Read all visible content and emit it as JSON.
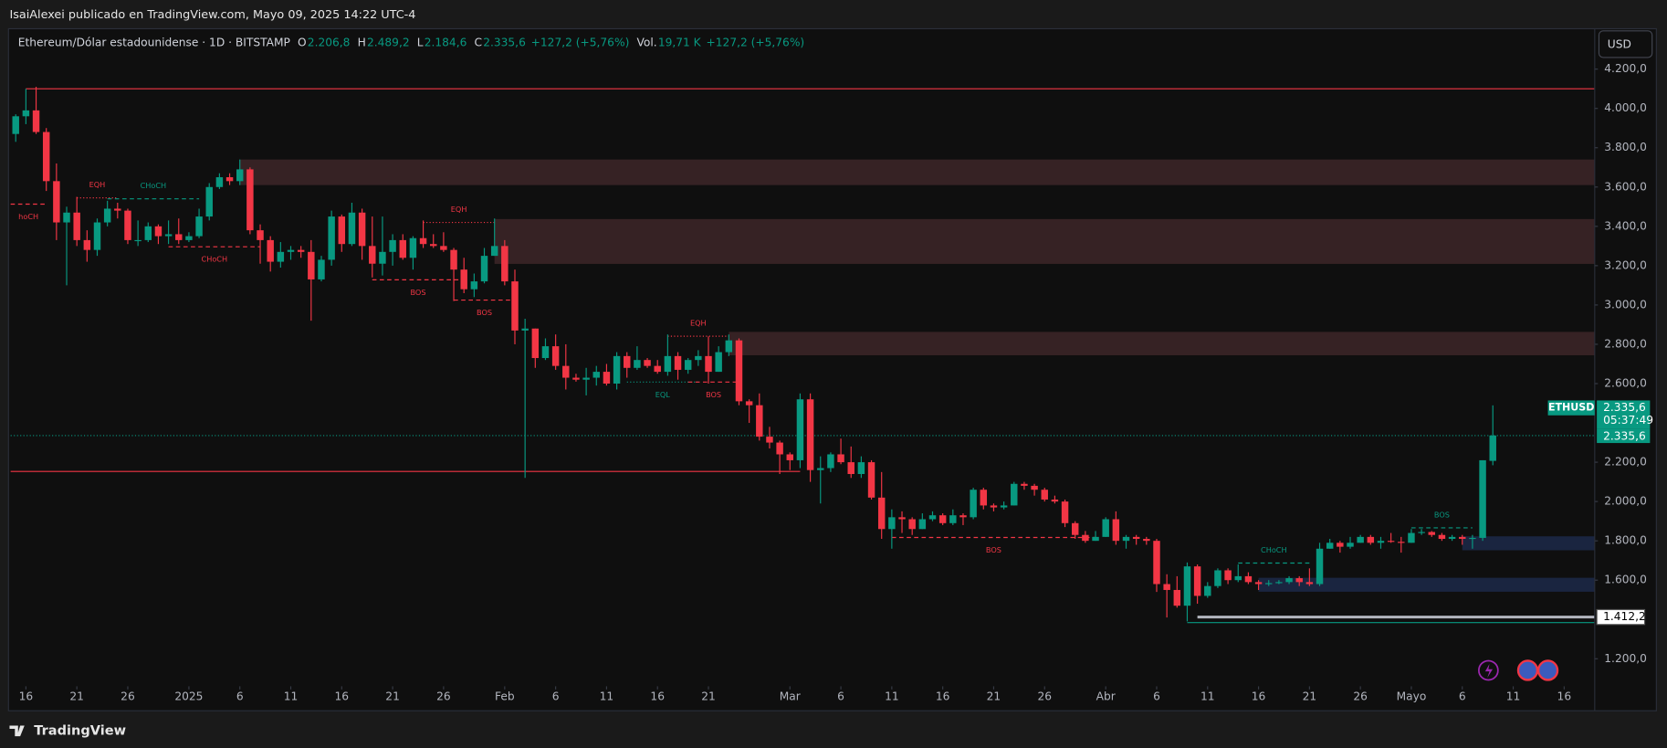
{
  "header": {
    "publisher": "IsaiAlexei publicado en TradingView.com, Mayo 09, 2025 14:22 UTC-4",
    "brand": "TradingView"
  },
  "legend": {
    "symbol": "Ethereum/Dólar estadounidense · 1D · BITSTAMP",
    "items": [
      {
        "key": "O",
        "text": "2.206,8"
      },
      {
        "key": "H",
        "text": "2.489,2"
      },
      {
        "key": "L",
        "text": "2.184,6"
      },
      {
        "key": "C",
        "text": "2.335,6"
      },
      {
        "text": "+127,2 (+5,76%)"
      },
      {
        "key": "Vol.",
        "text": "19,71 K"
      },
      {
        "text": "+127,2 (+5,76%)"
      }
    ]
  },
  "chart_data": {
    "type": "candlestick",
    "currency": "USD",
    "up_color": "#089981",
    "down_color": "#f23645",
    "xlim": [
      -0.5,
      155
    ],
    "ylim": [
      1060,
      4400
    ],
    "grid": false,
    "xticks": [
      {
        "value": 1,
        "label": "16"
      },
      {
        "value": 6,
        "label": "21"
      },
      {
        "value": 11,
        "label": "26"
      },
      {
        "value": 17,
        "label": "2025"
      },
      {
        "value": 22,
        "label": "6"
      },
      {
        "value": 27,
        "label": "11"
      },
      {
        "value": 32,
        "label": "16"
      },
      {
        "value": 37,
        "label": "21"
      },
      {
        "value": 42,
        "label": "26"
      },
      {
        "value": 48,
        "label": "Feb"
      },
      {
        "value": 53,
        "label": "6"
      },
      {
        "value": 58,
        "label": "11"
      },
      {
        "value": 63,
        "label": "16"
      },
      {
        "value": 68,
        "label": "21"
      },
      {
        "value": 76,
        "label": "Mar"
      },
      {
        "value": 81,
        "label": "6"
      },
      {
        "value": 86,
        "label": "11"
      },
      {
        "value": 91,
        "label": "16"
      },
      {
        "value": 96,
        "label": "21"
      },
      {
        "value": 101,
        "label": "26"
      },
      {
        "value": 107,
        "label": "Abr"
      },
      {
        "value": 112,
        "label": "6"
      },
      {
        "value": 117,
        "label": "11"
      },
      {
        "value": 122,
        "label": "16"
      },
      {
        "value": 127,
        "label": "21"
      },
      {
        "value": 132,
        "label": "26"
      },
      {
        "value": 137,
        "label": "Mayo"
      },
      {
        "value": 142,
        "label": "6"
      },
      {
        "value": 147,
        "label": "11"
      },
      {
        "value": 152,
        "label": "16"
      }
    ],
    "yticks": [
      {
        "value": 1200,
        "label": "1.200,0"
      },
      {
        "value": 1600,
        "label": "1.600,0"
      },
      {
        "value": 1800,
        "label": "1.800,0"
      },
      {
        "value": 2000,
        "label": "2.000,0"
      },
      {
        "value": 2200,
        "label": "2.200,0"
      },
      {
        "value": 2600,
        "label": "2.600,0"
      },
      {
        "value": 2800,
        "label": "2.800,0"
      },
      {
        "value": 3000,
        "label": "3.000,0"
      },
      {
        "value": 3200,
        "label": "3.200,0"
      },
      {
        "value": 3400,
        "label": "3.400,0"
      },
      {
        "value": 3600,
        "label": "3.600,0"
      },
      {
        "value": 3800,
        "label": "3.800,0"
      },
      {
        "value": 4000,
        "label": "4.000,0"
      },
      {
        "value": 4200,
        "label": "4.200,0"
      }
    ],
    "ohlc": [
      [
        3870,
        3970,
        3830,
        3960
      ],
      [
        3960,
        4100,
        3920,
        3990
      ],
      [
        3990,
        4110,
        3870,
        3880
      ],
      [
        3880,
        3900,
        3580,
        3630
      ],
      [
        3630,
        3720,
        3330,
        3420
      ],
      [
        3420,
        3500,
        3100,
        3470
      ],
      [
        3470,
        3550,
        3300,
        3330
      ],
      [
        3330,
        3380,
        3220,
        3280
      ],
      [
        3280,
        3440,
        3250,
        3420
      ],
      [
        3420,
        3530,
        3400,
        3490
      ],
      [
        3490,
        3520,
        3440,
        3480
      ],
      [
        3480,
        3490,
        3310,
        3330
      ],
      [
        3330,
        3430,
        3300,
        3330
      ],
      [
        3330,
        3420,
        3320,
        3400
      ],
      [
        3400,
        3410,
        3310,
        3350
      ],
      [
        3350,
        3430,
        3310,
        3360
      ],
      [
        3360,
        3440,
        3310,
        3330
      ],
      [
        3330,
        3370,
        3320,
        3350
      ],
      [
        3350,
        3490,
        3340,
        3450
      ],
      [
        3450,
        3620,
        3430,
        3600
      ],
      [
        3600,
        3670,
        3590,
        3650
      ],
      [
        3650,
        3670,
        3610,
        3630
      ],
      [
        3630,
        3740,
        3610,
        3690
      ],
      [
        3690,
        3700,
        3360,
        3380
      ],
      [
        3380,
        3410,
        3210,
        3330
      ],
      [
        3330,
        3350,
        3170,
        3220
      ],
      [
        3220,
        3320,
        3190,
        3270
      ],
      [
        3270,
        3300,
        3230,
        3280
      ],
      [
        3280,
        3300,
        3240,
        3270
      ],
      [
        3270,
        3330,
        2920,
        3130
      ],
      [
        3130,
        3250,
        3120,
        3230
      ],
      [
        3230,
        3480,
        3200,
        3450
      ],
      [
        3450,
        3460,
        3270,
        3310
      ],
      [
        3310,
        3520,
        3300,
        3470
      ],
      [
        3470,
        3490,
        3230,
        3300
      ],
      [
        3300,
        3450,
        3140,
        3210
      ],
      [
        3210,
        3450,
        3150,
        3270
      ],
      [
        3270,
        3360,
        3200,
        3330
      ],
      [
        3330,
        3360,
        3230,
        3240
      ],
      [
        3240,
        3350,
        3180,
        3340
      ],
      [
        3340,
        3430,
        3290,
        3310
      ],
      [
        3310,
        3360,
        3290,
        3300
      ],
      [
        3300,
        3370,
        3270,
        3280
      ],
      [
        3280,
        3290,
        3020,
        3180
      ],
      [
        3180,
        3240,
        3060,
        3080
      ],
      [
        3080,
        3160,
        3040,
        3120
      ],
      [
        3120,
        3290,
        3110,
        3250
      ],
      [
        3250,
        3440,
        3250,
        3300
      ],
      [
        3300,
        3330,
        3100,
        3120
      ],
      [
        3120,
        3180,
        2800,
        2870
      ],
      [
        2870,
        2930,
        2120,
        2880
      ],
      [
        2880,
        2880,
        2680,
        2730
      ],
      [
        2730,
        2830,
        2720,
        2790
      ],
      [
        2790,
        2850,
        2670,
        2690
      ],
      [
        2690,
        2800,
        2570,
        2630
      ],
      [
        2630,
        2650,
        2610,
        2620
      ],
      [
        2620,
        2680,
        2540,
        2630
      ],
      [
        2630,
        2690,
        2590,
        2660
      ],
      [
        2660,
        2700,
        2590,
        2600
      ],
      [
        2600,
        2760,
        2570,
        2740
      ],
      [
        2740,
        2760,
        2630,
        2680
      ],
      [
        2680,
        2790,
        2670,
        2720
      ],
      [
        2720,
        2730,
        2680,
        2690
      ],
      [
        2690,
        2720,
        2650,
        2660
      ],
      [
        2660,
        2850,
        2640,
        2740
      ],
      [
        2740,
        2760,
        2620,
        2670
      ],
      [
        2670,
        2730,
        2650,
        2720
      ],
      [
        2720,
        2770,
        2690,
        2740
      ],
      [
        2740,
        2840,
        2600,
        2660
      ],
      [
        2660,
        2790,
        2660,
        2760
      ],
      [
        2760,
        2850,
        2740,
        2820
      ],
      [
        2820,
        2830,
        2490,
        2510
      ],
      [
        2510,
        2520,
        2400,
        2490
      ],
      [
        2490,
        2550,
        2310,
        2330
      ],
      [
        2330,
        2380,
        2270,
        2300
      ],
      [
        2300,
        2310,
        2140,
        2240
      ],
      [
        2240,
        2250,
        2160,
        2210
      ],
      [
        2210,
        2550,
        2170,
        2520
      ],
      [
        2520,
        2550,
        2100,
        2160
      ],
      [
        2160,
        2230,
        1990,
        2170
      ],
      [
        2170,
        2250,
        2150,
        2240
      ],
      [
        2240,
        2320,
        2190,
        2200
      ],
      [
        2200,
        2280,
        2120,
        2140
      ],
      [
        2140,
        2230,
        2120,
        2200
      ],
      [
        2200,
        2210,
        2010,
        2020
      ],
      [
        2020,
        2150,
        1810,
        1860
      ],
      [
        1860,
        1960,
        1760,
        1920
      ],
      [
        1920,
        1950,
        1840,
        1910
      ],
      [
        1910,
        1920,
        1830,
        1860
      ],
      [
        1860,
        1940,
        1860,
        1910
      ],
      [
        1910,
        1950,
        1900,
        1930
      ],
      [
        1930,
        1940,
        1880,
        1890
      ],
      [
        1890,
        1960,
        1880,
        1930
      ],
      [
        1930,
        1940,
        1880,
        1920
      ],
      [
        1920,
        2070,
        1910,
        2060
      ],
      [
        2060,
        2070,
        1960,
        1980
      ],
      [
        1980,
        1990,
        1950,
        1970
      ],
      [
        1970,
        2000,
        1960,
        1980
      ],
      [
        1980,
        2100,
        1980,
        2090
      ],
      [
        2090,
        2100,
        2060,
        2080
      ],
      [
        2080,
        2090,
        2030,
        2060
      ],
      [
        2060,
        2070,
        2000,
        2010
      ],
      [
        2010,
        2030,
        1990,
        2000
      ],
      [
        2000,
        2010,
        1870,
        1890
      ],
      [
        1890,
        1900,
        1810,
        1830
      ],
      [
        1830,
        1850,
        1790,
        1800
      ],
      [
        1800,
        1850,
        1800,
        1820
      ],
      [
        1820,
        1920,
        1820,
        1910
      ],
      [
        1910,
        1950,
        1780,
        1800
      ],
      [
        1800,
        1830,
        1760,
        1820
      ],
      [
        1820,
        1830,
        1780,
        1810
      ],
      [
        1810,
        1820,
        1780,
        1800
      ],
      [
        1800,
        1810,
        1540,
        1580
      ],
      [
        1580,
        1630,
        1410,
        1550
      ],
      [
        1550,
        1620,
        1460,
        1470
      ],
      [
        1470,
        1690,
        1390,
        1670
      ],
      [
        1670,
        1680,
        1480,
        1520
      ],
      [
        1520,
        1590,
        1510,
        1570
      ],
      [
        1570,
        1660,
        1560,
        1650
      ],
      [
        1650,
        1660,
        1580,
        1600
      ],
      [
        1600,
        1680,
        1590,
        1620
      ],
      [
        1620,
        1640,
        1580,
        1590
      ],
      [
        1590,
        1600,
        1550,
        1580
      ],
      [
        1580,
        1600,
        1570,
        1585
      ],
      [
        1585,
        1600,
        1580,
        1590
      ],
      [
        1590,
        1620,
        1580,
        1610
      ],
      [
        1610,
        1620,
        1570,
        1590
      ],
      [
        1590,
        1660,
        1570,
        1580
      ],
      [
        1580,
        1790,
        1570,
        1760
      ],
      [
        1760,
        1810,
        1760,
        1790
      ],
      [
        1790,
        1800,
        1740,
        1770
      ],
      [
        1770,
        1820,
        1760,
        1790
      ],
      [
        1790,
        1830,
        1790,
        1820
      ],
      [
        1820,
        1830,
        1780,
        1790
      ],
      [
        1790,
        1820,
        1760,
        1800
      ],
      [
        1800,
        1840,
        1790,
        1795
      ],
      [
        1795,
        1820,
        1740,
        1790
      ],
      [
        1790,
        1860,
        1790,
        1840
      ],
      [
        1840,
        1860,
        1830,
        1845
      ],
      [
        1845,
        1850,
        1820,
        1830
      ],
      [
        1830,
        1840,
        1800,
        1810
      ],
      [
        1810,
        1830,
        1800,
        1820
      ],
      [
        1820,
        1830,
        1780,
        1810
      ],
      [
        1810,
        1830,
        1760,
        1815
      ],
      [
        1815,
        2210,
        1800,
        2210
      ],
      [
        2206.8,
        2489.2,
        2184.6,
        2335.6
      ]
    ],
    "zones": [
      {
        "from": 22,
        "low": 3610,
        "high": 3740,
        "color": "#3b2527"
      },
      {
        "from": 47,
        "low": 3209,
        "high": 3437,
        "color": "#3b2527"
      },
      {
        "from": 70,
        "low": 2744,
        "high": 2863,
        "color": "#3b2527"
      },
      {
        "from": 142,
        "low": 1752,
        "high": 1823,
        "color": "#1c2846"
      },
      {
        "from": 122,
        "low": 1541,
        "high": 1612,
        "color": "#1c2846"
      }
    ],
    "levels": [
      {
        "value": 4100,
        "from": 1,
        "color": "#f23645"
      },
      {
        "value": 2153,
        "from": -0.5,
        "to": 77,
        "color": "#f23645"
      },
      {
        "value": 1384,
        "from": 115,
        "color": "#089981"
      }
    ],
    "structures": [
      {
        "text": "hoCH",
        "from": -0.5,
        "to": 3,
        "value": 3513,
        "color": "#f23645",
        "style": "dashed",
        "label_side": "below"
      },
      {
        "text": "EQH",
        "from": 6,
        "to": 10,
        "value": 3545,
        "color": "#f23645",
        "style": "dotted",
        "label_side": "above"
      },
      {
        "text": "CHoCH",
        "from": 9,
        "to": 18,
        "value": 3540,
        "color": "#089981",
        "style": "dashed",
        "label_side": "above"
      },
      {
        "text": "CHoCH",
        "from": 15,
        "to": 24,
        "value": 3296,
        "color": "#f23645",
        "style": "dashed",
        "label_side": "below"
      },
      {
        "text": "EQH",
        "from": 40,
        "to": 47,
        "value": 3420,
        "color": "#f23645",
        "style": "dotted",
        "label_side": "above"
      },
      {
        "text": "BOS",
        "from": 35,
        "to": 44,
        "value": 3128,
        "color": "#f23645",
        "style": "dashed",
        "label_side": "below"
      },
      {
        "text": "BOS",
        "from": 43,
        "to": 49,
        "value": 3025,
        "color": "#f23645",
        "style": "dashed",
        "label_side": "below"
      },
      {
        "text": "EQH",
        "from": 64,
        "to": 70,
        "value": 2841,
        "color": "#f23645",
        "style": "dotted",
        "label_side": "above"
      },
      {
        "text": "EQL",
        "from": 60,
        "to": 67,
        "value": 2608,
        "color": "#089981",
        "style": "dotted",
        "label_side": "below"
      },
      {
        "text": "BOS",
        "from": 66,
        "to": 71,
        "value": 2608,
        "color": "#f23645",
        "style": "dashed",
        "label_side": "below"
      },
      {
        "text": "BOS",
        "from": 86,
        "to": 106,
        "value": 1817,
        "color": "#f23645",
        "style": "dashed",
        "label_side": "below"
      },
      {
        "text": "CHoCH",
        "from": 120,
        "to": 127,
        "value": 1687,
        "color": "#089981",
        "style": "dashed",
        "label_side": "above"
      },
      {
        "text": "BOS",
        "from": 137,
        "to": 143,
        "value": 1866,
        "color": "#089981",
        "style": "dashed",
        "label_side": "above"
      }
    ],
    "last_price": {
      "symbol": "ETHUSD",
      "value": 2335.6,
      "label": "2.335,6",
      "countdown": "05:37:49"
    },
    "marked_level": {
      "value": 1412.2,
      "label": "1.412,2",
      "from": 116
    }
  }
}
